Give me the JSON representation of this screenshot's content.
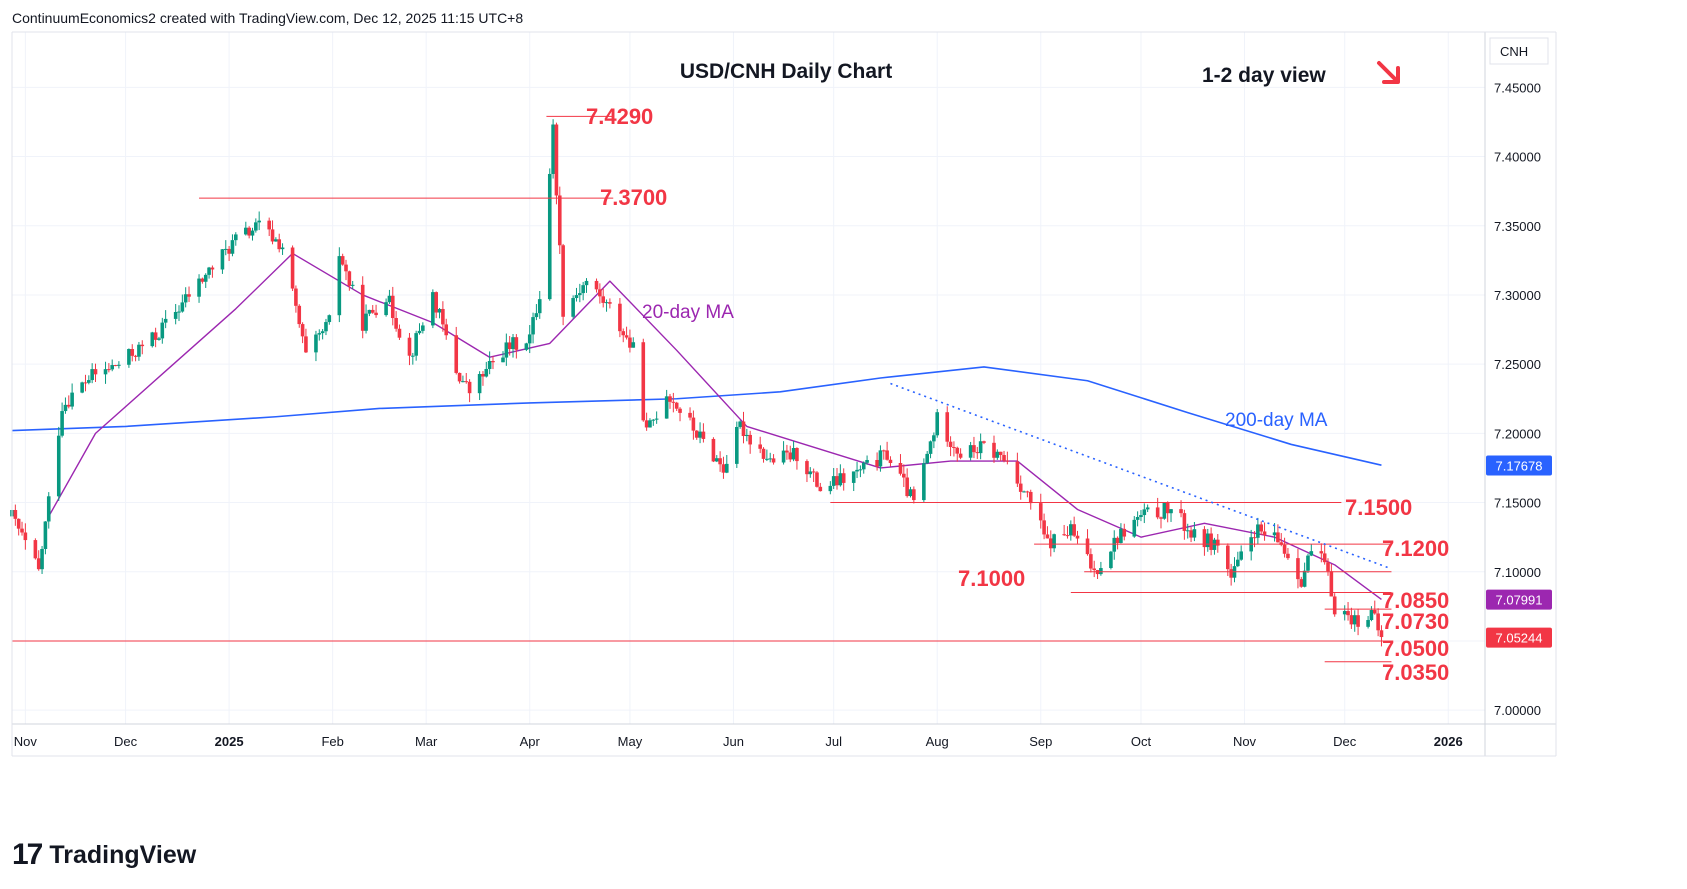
{
  "attribution": "ContinuumEconomics2 created with TradingView.com, Dec 12, 2025 11:15 UTC+8",
  "brand": "TradingView",
  "colors": {
    "up": "#089981",
    "down": "#f23645",
    "level_line": "#f23645",
    "ma20": "#9c27b0",
    "ma200": "#2962ff",
    "text": "#131722"
  },
  "chart_data": {
    "type": "candlestick",
    "title": "USD/CNH Daily Chart",
    "subtitle": "1-2 day view",
    "view_arrow": "down-right-arrow",
    "symbol": "CNH",
    "x_ticks": [
      "Nov",
      "Dec",
      "2025",
      "Feb",
      "Mar",
      "Apr",
      "May",
      "Jun",
      "Jul",
      "Aug",
      "Sep",
      "Oct",
      "Nov",
      "Dec",
      "2026"
    ],
    "x_start": "2024-10-28",
    "x_end": "2026-01-12",
    "y_ticks": [
      "7.45000",
      "7.40000",
      "7.35000",
      "7.30000",
      "7.25000",
      "7.20000",
      "7.15000",
      "7.10000",
      "7.05000",
      "7.00000"
    ],
    "ylim": [
      6.99,
      7.49
    ],
    "price_labels": [
      {
        "name": "200-day MA",
        "value": "7.17678",
        "color": "#2962ff"
      },
      {
        "name": "20-day MA",
        "value": "7.07991",
        "color": "#9c27b0"
      },
      {
        "name": "last",
        "value": "7.05244",
        "color": "#f23645"
      }
    ],
    "series_labels": [
      {
        "label": "20-day MA",
        "color": "#9c27b0"
      },
      {
        "label": "200-day MA",
        "color": "#2962ff"
      }
    ],
    "levels": [
      {
        "label": "7.4290",
        "value": 7.429,
        "from": "2025-04-06",
        "to": "2025-04-26"
      },
      {
        "label": "7.3700",
        "value": 7.37,
        "from": "2024-12-23",
        "to": "2025-04-26"
      },
      {
        "label": "7.1500",
        "value": 7.15,
        "from": "2025-06-30",
        "to": "2025-11-30"
      },
      {
        "label": "7.1200",
        "value": 7.12,
        "from": "2025-08-30",
        "to": "2025-12-15"
      },
      {
        "label": "7.1000",
        "value": 7.1,
        "from": "2025-09-14",
        "to": "2025-12-15"
      },
      {
        "label": "7.0850",
        "value": 7.085,
        "from": "2025-09-10",
        "to": "2025-12-15"
      },
      {
        "label": "7.0730",
        "value": 7.073,
        "from": "2025-11-25",
        "to": "2025-12-15"
      },
      {
        "label": "7.0500",
        "value": 7.05,
        "from": "2024-10-28",
        "to": "2025-12-15"
      },
      {
        "label": "7.0350",
        "value": 7.035,
        "from": "2025-11-25",
        "to": "2025-12-15"
      }
    ],
    "trendline": {
      "from": {
        "date": "2025-07-18",
        "value": 7.236
      },
      "to": {
        "date": "2025-12-14",
        "value": 7.103
      }
    },
    "anchors": [
      {
        "date": "2024-10-28",
        "close": 7.14
      },
      {
        "date": "2024-11-05",
        "close": 7.1
      },
      {
        "date": "2024-11-12",
        "close": 7.22
      },
      {
        "date": "2024-11-20",
        "close": 7.24
      },
      {
        "date": "2024-11-29",
        "close": 7.25
      },
      {
        "date": "2024-12-10",
        "close": 7.27
      },
      {
        "date": "2024-12-20",
        "close": 7.3
      },
      {
        "date": "2025-01-03",
        "close": 7.34
      },
      {
        "date": "2025-01-10",
        "close": 7.35
      },
      {
        "date": "2025-01-17",
        "close": 7.335
      },
      {
        "date": "2025-01-24",
        "close": 7.255
      },
      {
        "date": "2025-01-31",
        "close": 7.28
      },
      {
        "date": "2025-02-03",
        "close": 7.33
      },
      {
        "date": "2025-02-10",
        "close": 7.28
      },
      {
        "date": "2025-02-17",
        "close": 7.3
      },
      {
        "date": "2025-02-24",
        "close": 7.255
      },
      {
        "date": "2025-03-03",
        "close": 7.3
      },
      {
        "date": "2025-03-10",
        "close": 7.245
      },
      {
        "date": "2025-03-14",
        "close": 7.23
      },
      {
        "date": "2025-03-24",
        "close": 7.26
      },
      {
        "date": "2025-04-01",
        "close": 7.27
      },
      {
        "date": "2025-04-04",
        "close": 7.3
      },
      {
        "date": "2025-04-08",
        "close": 7.42
      },
      {
        "date": "2025-04-11",
        "close": 7.29
      },
      {
        "date": "2025-04-18",
        "close": 7.31
      },
      {
        "date": "2025-04-25",
        "close": 7.29
      },
      {
        "date": "2025-05-02",
        "close": 7.26
      },
      {
        "date": "2025-05-06",
        "close": 7.2
      },
      {
        "date": "2025-05-12",
        "close": 7.23
      },
      {
        "date": "2025-05-21",
        "close": 7.2
      },
      {
        "date": "2025-05-29",
        "close": 7.175
      },
      {
        "date": "2025-06-03",
        "close": 7.205
      },
      {
        "date": "2025-06-12",
        "close": 7.18
      },
      {
        "date": "2025-06-20",
        "close": 7.185
      },
      {
        "date": "2025-06-27",
        "close": 7.16
      },
      {
        "date": "2025-07-07",
        "close": 7.17
      },
      {
        "date": "2025-07-17",
        "close": 7.185
      },
      {
        "date": "2025-07-25",
        "close": 7.15
      },
      {
        "date": "2025-08-01",
        "close": 7.21
      },
      {
        "date": "2025-08-08",
        "close": 7.185
      },
      {
        "date": "2025-08-15",
        "close": 7.19
      },
      {
        "date": "2025-08-22",
        "close": 7.18
      },
      {
        "date": "2025-08-29",
        "close": 7.15
      },
      {
        "date": "2025-09-03",
        "close": 7.12
      },
      {
        "date": "2025-09-10",
        "close": 7.13
      },
      {
        "date": "2025-09-17",
        "close": 7.1
      },
      {
        "date": "2025-09-24",
        "close": 7.125
      },
      {
        "date": "2025-10-01",
        "close": 7.14
      },
      {
        "date": "2025-10-10",
        "close": 7.145
      },
      {
        "date": "2025-10-17",
        "close": 7.125
      },
      {
        "date": "2025-10-24",
        "close": 7.12
      },
      {
        "date": "2025-10-28",
        "close": 7.095
      },
      {
        "date": "2025-11-04",
        "close": 7.13
      },
      {
        "date": "2025-11-12",
        "close": 7.12
      },
      {
        "date": "2025-11-18",
        "close": 7.095
      },
      {
        "date": "2025-11-21",
        "close": 7.115
      },
      {
        "date": "2025-11-25",
        "close": 7.105
      },
      {
        "date": "2025-11-28",
        "close": 7.075
      },
      {
        "date": "2025-12-04",
        "close": 7.065
      },
      {
        "date": "2025-12-09",
        "close": 7.07
      },
      {
        "date": "2025-12-12",
        "close": 7.052
      }
    ],
    "ma20": [
      {
        "date": "2024-11-08",
        "value": 7.14
      },
      {
        "date": "2024-11-22",
        "value": 7.2
      },
      {
        "date": "2024-12-13",
        "value": 7.245
      },
      {
        "date": "2025-01-03",
        "value": 7.29
      },
      {
        "date": "2025-01-20",
        "value": 7.33
      },
      {
        "date": "2025-02-10",
        "value": 7.3
      },
      {
        "date": "2025-03-03",
        "value": 7.28
      },
      {
        "date": "2025-03-20",
        "value": 7.255
      },
      {
        "date": "2025-04-07",
        "value": 7.265
      },
      {
        "date": "2025-04-25",
        "value": 7.31
      },
      {
        "date": "2025-05-15",
        "value": 7.26
      },
      {
        "date": "2025-06-05",
        "value": 7.205
      },
      {
        "date": "2025-06-25",
        "value": 7.19
      },
      {
        "date": "2025-07-15",
        "value": 7.175
      },
      {
        "date": "2025-08-05",
        "value": 7.18
      },
      {
        "date": "2025-08-25",
        "value": 7.18
      },
      {
        "date": "2025-09-12",
        "value": 7.145
      },
      {
        "date": "2025-10-01",
        "value": 7.125
      },
      {
        "date": "2025-10-20",
        "value": 7.135
      },
      {
        "date": "2025-11-10",
        "value": 7.125
      },
      {
        "date": "2025-11-28",
        "value": 7.105
      },
      {
        "date": "2025-12-12",
        "value": 7.08
      }
    ],
    "ma200": [
      {
        "date": "2024-10-28",
        "value": 7.202
      },
      {
        "date": "2024-12-01",
        "value": 7.205
      },
      {
        "date": "2025-01-15",
        "value": 7.212
      },
      {
        "date": "2025-02-15",
        "value": 7.218
      },
      {
        "date": "2025-04-01",
        "value": 7.222
      },
      {
        "date": "2025-05-15",
        "value": 7.225
      },
      {
        "date": "2025-06-15",
        "value": 7.23
      },
      {
        "date": "2025-07-15",
        "value": 7.24
      },
      {
        "date": "2025-08-15",
        "value": 7.248
      },
      {
        "date": "2025-09-15",
        "value": 7.238
      },
      {
        "date": "2025-10-15",
        "value": 7.215
      },
      {
        "date": "2025-11-15",
        "value": 7.192
      },
      {
        "date": "2025-12-12",
        "value": 7.177
      }
    ]
  }
}
